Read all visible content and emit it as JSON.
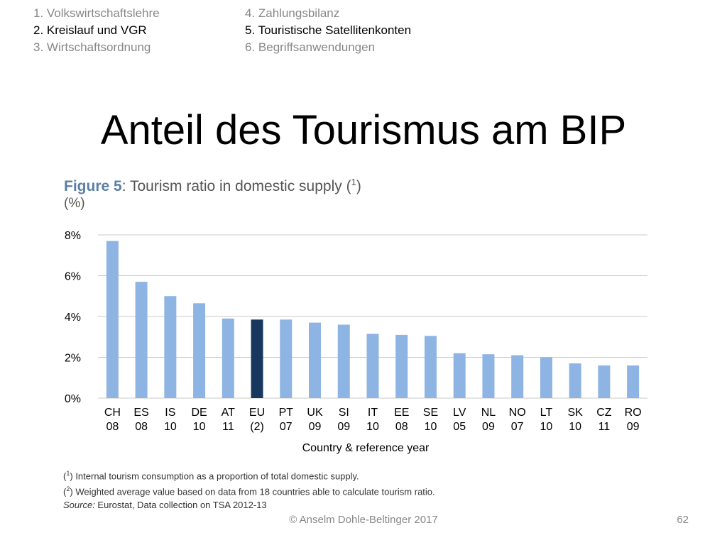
{
  "nav": {
    "left": [
      {
        "label": "1. Volkswirtschaftslehre",
        "active": false
      },
      {
        "label": "2. Kreislauf und VGR",
        "active": true
      },
      {
        "label": "3. Wirtschaftsordnung",
        "active": false
      }
    ],
    "right": [
      {
        "label": "4. Zahlungsbilanz",
        "active": false
      },
      {
        "label": "5. Touristische Satellitenkonten",
        "active": true
      },
      {
        "label": "6. Begriffsanwendungen",
        "active": false
      }
    ]
  },
  "slide": {
    "title": "Anteil des Tourismus am BIP",
    "footer": "© Anselm Dohle-Beltinger 2017",
    "page_number": "62"
  },
  "figure": {
    "label": "Figure 5",
    "caption": ": Tourism ratio in domestic supply (",
    "caption_sup": "1",
    "caption_end": ")",
    "unit": "(%)"
  },
  "footnotes": {
    "note1_marker": "1",
    "note1_text": " Internal tourism consumption as a proportion of total domestic supply.",
    "note2_marker": "2",
    "note2_text": " Weighted average value based on data from 18 countries able to calculate tourism ratio.",
    "source_label": "Source:",
    "source_text": " Eurostat, Data collection on TSA 2012-13"
  },
  "colors": {
    "bar": "#8eb4e3",
    "bar_highlight": "#17375e",
    "grid": "#c8c8c8",
    "axis_text": "#000000"
  },
  "chart_data": {
    "type": "bar",
    "title": "Tourism ratio in domestic supply",
    "xlabel": "Country & reference year",
    "ylabel": "",
    "ylim": [
      0,
      8
    ],
    "yticks": [
      0,
      2,
      4,
      6,
      8
    ],
    "ytick_labels": [
      "0%",
      "2%",
      "4%",
      "6%",
      "8%"
    ],
    "grid": true,
    "categories": [
      {
        "code": "CH",
        "year": "08"
      },
      {
        "code": "ES",
        "year": "08"
      },
      {
        "code": "IS",
        "year": "10"
      },
      {
        "code": "DE",
        "year": "10"
      },
      {
        "code": "AT",
        "year": "11"
      },
      {
        "code": "EU",
        "year": "(2)"
      },
      {
        "code": "PT",
        "year": "07"
      },
      {
        "code": "UK",
        "year": "09"
      },
      {
        "code": "SI",
        "year": "09"
      },
      {
        "code": "IT",
        "year": "10"
      },
      {
        "code": "EE",
        "year": "08"
      },
      {
        "code": "SE",
        "year": "10"
      },
      {
        "code": "LV",
        "year": "05"
      },
      {
        "code": "NL",
        "year": "09"
      },
      {
        "code": "NO",
        "year": "07"
      },
      {
        "code": "LT",
        "year": "10"
      },
      {
        "code": "SK",
        "year": "10"
      },
      {
        "code": "CZ",
        "year": "11"
      },
      {
        "code": "RO",
        "year": "09"
      }
    ],
    "values": [
      7.7,
      5.7,
      5.0,
      4.65,
      3.9,
      3.85,
      3.85,
      3.7,
      3.6,
      3.15,
      3.1,
      3.05,
      2.2,
      2.15,
      2.1,
      2.0,
      1.7,
      1.6,
      1.6
    ],
    "highlight_index": 5
  }
}
